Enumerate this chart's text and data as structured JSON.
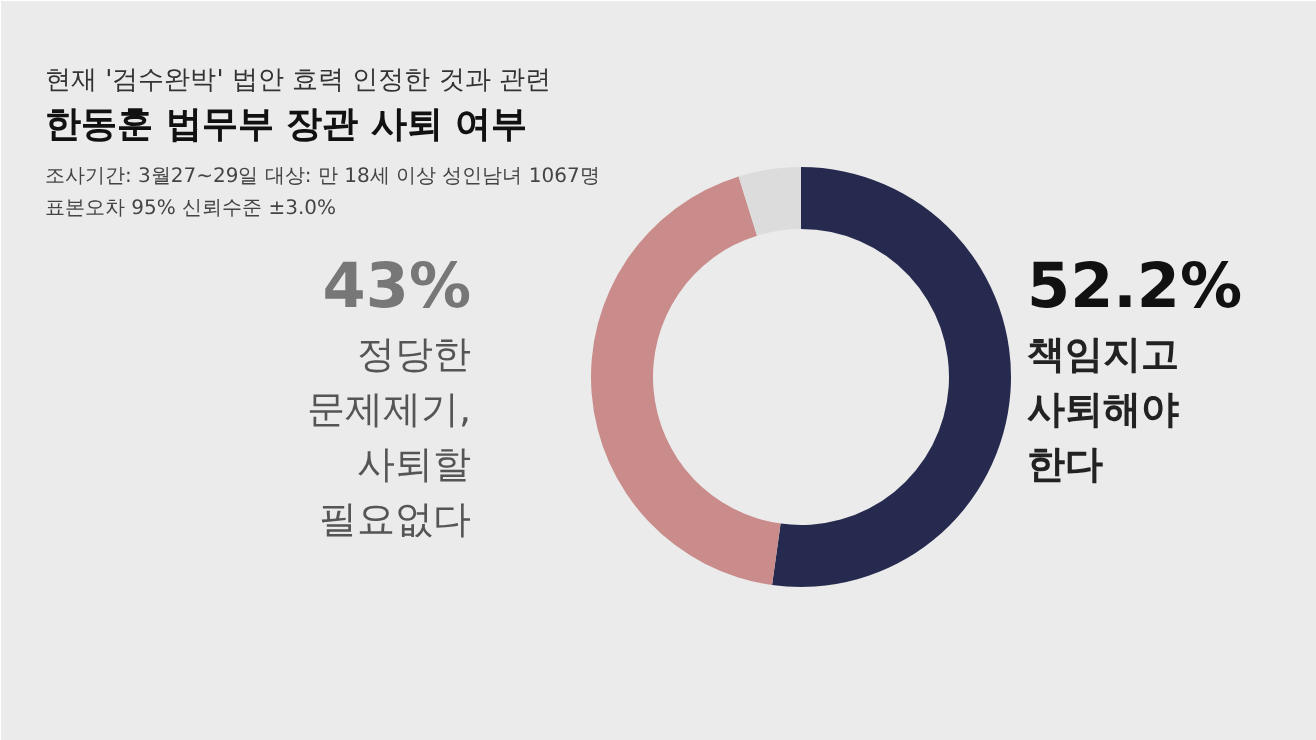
{
  "chart_data": {
    "type": "donut",
    "subtitle": "현재 '검수완박' 법안 효력 인정한 것과 관련",
    "title": "한동훈 법무부 장관 사퇴 여부",
    "annotations": [
      "조사기간: 3월27~29일  대상: 만 18세 이상 성인남녀 1067명",
      "표본오차 95% 신뢰수준 ±3.0%"
    ],
    "categories": [
      "책임지고\n사퇴해야\n한다",
      "정당한\n문제제기,\n사퇴할\n필요없다",
      null
    ],
    "values": [
      52.2,
      43,
      4.8
    ],
    "value_labels": [
      "52.2%",
      "43%",
      null
    ],
    "colors": [
      "#262a4f",
      "#c98c8a",
      "#dcdcdc"
    ]
  }
}
